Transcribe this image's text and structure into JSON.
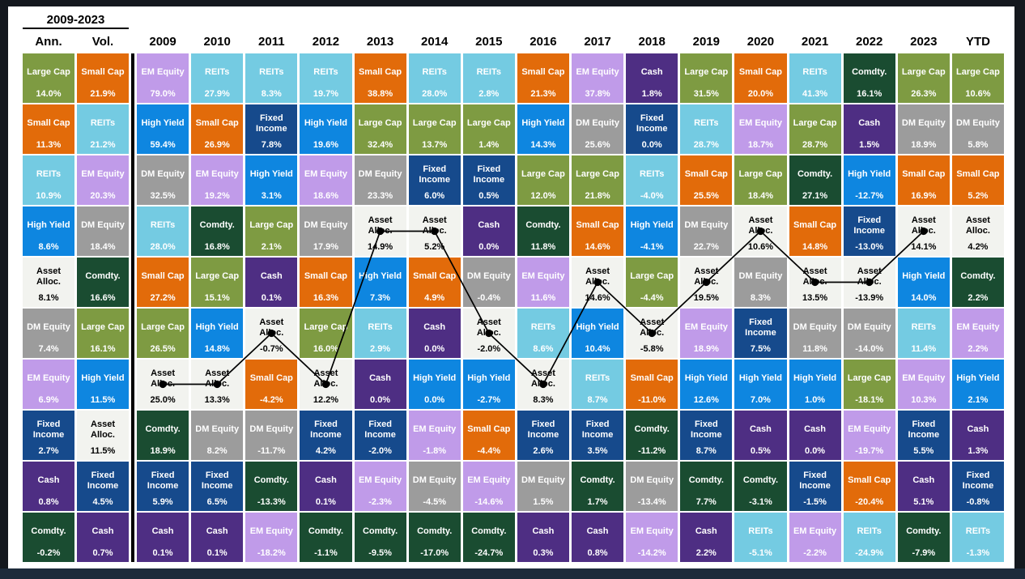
{
  "frame": {
    "background_color": "#14181e",
    "bottom_bar_color": "#1d2b3b",
    "panel_color": "#ffffff"
  },
  "chart_data": {
    "type": "table",
    "title": "2009-2023",
    "description": "Asset class annual returns quilt, ranked best to worst per column, with a black connected line marking the Asset Alloc. portfolio path from 2009 through 2023",
    "legend_position": "none",
    "grid": "quilt",
    "asset_styles": {
      "Large Cap": {
        "bg": "#7E9B42",
        "fg": "#FFFFFF"
      },
      "Small Cap": {
        "bg": "#E26B0A",
        "fg": "#FFFFFF"
      },
      "REITs": {
        "bg": "#74CBE2",
        "fg": "#FFFFFF"
      },
      "High Yield": {
        "bg": "#0E86E0",
        "fg": "#FFFFFF"
      },
      "Asset Alloc.": {
        "bg": "#F2F3EF",
        "fg": "#000000"
      },
      "DM Equity": {
        "bg": "#9C9C9C",
        "fg": "#FFFFFF"
      },
      "EM Equity": {
        "bg": "#C09BE9",
        "fg": "#FFFFFF"
      },
      "Fixed Income": {
        "bg": "#164A8C",
        "fg": "#FFFFFF"
      },
      "Cash": {
        "bg": "#4E2E83",
        "fg": "#FFFFFF"
      },
      "Comdty.": {
        "bg": "#1A4C31",
        "fg": "#FFFFFF"
      }
    },
    "line_overlay": {
      "asset": "Asset Alloc.",
      "from_column": "2009",
      "to_column": "2023",
      "color": "#000000",
      "dot_radius": 4.6,
      "stroke_width": 1.7
    },
    "columns": [
      {
        "label": "Ann.",
        "kind": "summary",
        "cells": [
          {
            "asset": "Large Cap",
            "value": "14.0%"
          },
          {
            "asset": "Small Cap",
            "value": "11.3%"
          },
          {
            "asset": "REITs",
            "value": "10.9%"
          },
          {
            "asset": "High Yield",
            "value": "8.6%"
          },
          {
            "asset": "Asset Alloc.",
            "value": "8.1%"
          },
          {
            "asset": "DM Equity",
            "value": "7.4%"
          },
          {
            "asset": "EM Equity",
            "value": "6.9%"
          },
          {
            "asset": "Fixed Income",
            "value": "2.7%"
          },
          {
            "asset": "Cash",
            "value": "0.8%"
          },
          {
            "asset": "Comdty.",
            "value": "-0.2%"
          }
        ]
      },
      {
        "label": "Vol.",
        "kind": "summary",
        "cells": [
          {
            "asset": "Small Cap",
            "value": "21.9%"
          },
          {
            "asset": "REITs",
            "value": "21.2%"
          },
          {
            "asset": "EM Equity",
            "value": "20.3%"
          },
          {
            "asset": "DM Equity",
            "value": "18.4%"
          },
          {
            "asset": "Comdty.",
            "value": "16.6%"
          },
          {
            "asset": "Large Cap",
            "value": "16.1%"
          },
          {
            "asset": "High Yield",
            "value": "11.5%"
          },
          {
            "asset": "Asset Alloc.",
            "value": "11.5%"
          },
          {
            "asset": "Fixed Income",
            "value": "4.5%"
          },
          {
            "asset": "Cash",
            "value": "0.7%"
          }
        ]
      },
      {
        "label": "2009",
        "kind": "year",
        "cells": [
          {
            "asset": "EM Equity",
            "value": "79.0%"
          },
          {
            "asset": "High Yield",
            "value": "59.4%"
          },
          {
            "asset": "DM Equity",
            "value": "32.5%"
          },
          {
            "asset": "REITs",
            "value": "28.0%"
          },
          {
            "asset": "Small Cap",
            "value": "27.2%"
          },
          {
            "asset": "Large Cap",
            "value": "26.5%"
          },
          {
            "asset": "Asset Alloc.",
            "value": "25.0%"
          },
          {
            "asset": "Comdty.",
            "value": "18.9%"
          },
          {
            "asset": "Fixed Income",
            "value": "5.9%"
          },
          {
            "asset": "Cash",
            "value": "0.1%"
          }
        ]
      },
      {
        "label": "2010",
        "kind": "year",
        "cells": [
          {
            "asset": "REITs",
            "value": "27.9%"
          },
          {
            "asset": "Small Cap",
            "value": "26.9%"
          },
          {
            "asset": "EM Equity",
            "value": "19.2%"
          },
          {
            "asset": "Comdty.",
            "value": "16.8%"
          },
          {
            "asset": "Large Cap",
            "value": "15.1%"
          },
          {
            "asset": "High Yield",
            "value": "14.8%"
          },
          {
            "asset": "Asset Alloc.",
            "value": "13.3%"
          },
          {
            "asset": "DM Equity",
            "value": "8.2%"
          },
          {
            "asset": "Fixed Income",
            "value": "6.5%"
          },
          {
            "asset": "Cash",
            "value": "0.1%"
          }
        ]
      },
      {
        "label": "2011",
        "kind": "year",
        "cells": [
          {
            "asset": "REITs",
            "value": "8.3%"
          },
          {
            "asset": "Fixed Income",
            "value": "7.8%"
          },
          {
            "asset": "High Yield",
            "value": "3.1%"
          },
          {
            "asset": "Large Cap",
            "value": "2.1%"
          },
          {
            "asset": "Cash",
            "value": "0.1%"
          },
          {
            "asset": "Asset Alloc.",
            "value": "-0.7%"
          },
          {
            "asset": "Small Cap",
            "value": "-4.2%"
          },
          {
            "asset": "DM Equity",
            "value": "-11.7%"
          },
          {
            "asset": "Comdty.",
            "value": "-13.3%"
          },
          {
            "asset": "EM Equity",
            "value": "-18.2%"
          }
        ]
      },
      {
        "label": "2012",
        "kind": "year",
        "cells": [
          {
            "asset": "REITs",
            "value": "19.7%"
          },
          {
            "asset": "High Yield",
            "value": "19.6%"
          },
          {
            "asset": "EM Equity",
            "value": "18.6%"
          },
          {
            "asset": "DM Equity",
            "value": "17.9%"
          },
          {
            "asset": "Small Cap",
            "value": "16.3%"
          },
          {
            "asset": "Large Cap",
            "value": "16.0%"
          },
          {
            "asset": "Asset Alloc.",
            "value": "12.2%"
          },
          {
            "asset": "Fixed Income",
            "value": "4.2%"
          },
          {
            "asset": "Cash",
            "value": "0.1%"
          },
          {
            "asset": "Comdty.",
            "value": "-1.1%"
          }
        ]
      },
      {
        "label": "2013",
        "kind": "year",
        "cells": [
          {
            "asset": "Small Cap",
            "value": "38.8%"
          },
          {
            "asset": "Large Cap",
            "value": "32.4%"
          },
          {
            "asset": "DM Equity",
            "value": "23.3%"
          },
          {
            "asset": "Asset Alloc.",
            "value": "14.9%"
          },
          {
            "asset": "High Yield",
            "value": "7.3%"
          },
          {
            "asset": "REITs",
            "value": "2.9%"
          },
          {
            "asset": "Cash",
            "value": "0.0%"
          },
          {
            "asset": "Fixed Income",
            "value": "-2.0%"
          },
          {
            "asset": "EM Equity",
            "value": "-2.3%"
          },
          {
            "asset": "Comdty.",
            "value": "-9.5%"
          }
        ]
      },
      {
        "label": "2014",
        "kind": "year",
        "cells": [
          {
            "asset": "REITs",
            "value": "28.0%"
          },
          {
            "asset": "Large Cap",
            "value": "13.7%"
          },
          {
            "asset": "Fixed Income",
            "value": "6.0%"
          },
          {
            "asset": "Asset Alloc.",
            "value": "5.2%"
          },
          {
            "asset": "Small Cap",
            "value": "4.9%"
          },
          {
            "asset": "Cash",
            "value": "0.0%"
          },
          {
            "asset": "High Yield",
            "value": "0.0%"
          },
          {
            "asset": "EM Equity",
            "value": "-1.8%"
          },
          {
            "asset": "DM Equity",
            "value": "-4.5%"
          },
          {
            "asset": "Comdty.",
            "value": "-17.0%"
          }
        ]
      },
      {
        "label": "2015",
        "kind": "year",
        "cells": [
          {
            "asset": "REITs",
            "value": "2.8%"
          },
          {
            "asset": "Large Cap",
            "value": "1.4%"
          },
          {
            "asset": "Fixed Income",
            "value": "0.5%"
          },
          {
            "asset": "Cash",
            "value": "0.0%"
          },
          {
            "asset": "DM Equity",
            "value": "-0.4%"
          },
          {
            "asset": "Asset Alloc.",
            "value": "-2.0%"
          },
          {
            "asset": "High Yield",
            "value": "-2.7%"
          },
          {
            "asset": "Small Cap",
            "value": "-4.4%"
          },
          {
            "asset": "EM Equity",
            "value": "-14.6%"
          },
          {
            "asset": "Comdty.",
            "value": "-24.7%"
          }
        ]
      },
      {
        "label": "2016",
        "kind": "year",
        "cells": [
          {
            "asset": "Small Cap",
            "value": "21.3%"
          },
          {
            "asset": "High Yield",
            "value": "14.3%"
          },
          {
            "asset": "Large Cap",
            "value": "12.0%"
          },
          {
            "asset": "Comdty.",
            "value": "11.8%"
          },
          {
            "asset": "EM Equity",
            "value": "11.6%"
          },
          {
            "asset": "REITs",
            "value": "8.6%"
          },
          {
            "asset": "Asset Alloc.",
            "value": "8.3%"
          },
          {
            "asset": "Fixed Income",
            "value": "2.6%"
          },
          {
            "asset": "DM Equity",
            "value": "1.5%"
          },
          {
            "asset": "Cash",
            "value": "0.3%"
          }
        ]
      },
      {
        "label": "2017",
        "kind": "year",
        "cells": [
          {
            "asset": "EM Equity",
            "value": "37.8%"
          },
          {
            "asset": "DM Equity",
            "value": "25.6%"
          },
          {
            "asset": "Large Cap",
            "value": "21.8%"
          },
          {
            "asset": "Small Cap",
            "value": "14.6%"
          },
          {
            "asset": "Asset Alloc.",
            "value": "14.6%"
          },
          {
            "asset": "High Yield",
            "value": "10.4%"
          },
          {
            "asset": "REITs",
            "value": "8.7%"
          },
          {
            "asset": "Fixed Income",
            "value": "3.5%"
          },
          {
            "asset": "Comdty.",
            "value": "1.7%"
          },
          {
            "asset": "Cash",
            "value": "0.8%"
          }
        ]
      },
      {
        "label": "2018",
        "kind": "year",
        "cells": [
          {
            "asset": "Cash",
            "value": "1.8%"
          },
          {
            "asset": "Fixed Income",
            "value": "0.0%"
          },
          {
            "asset": "REITs",
            "value": "-4.0%"
          },
          {
            "asset": "High Yield",
            "value": "-4.1%"
          },
          {
            "asset": "Large Cap",
            "value": "-4.4%"
          },
          {
            "asset": "Asset Alloc.",
            "value": "-5.8%"
          },
          {
            "asset": "Small Cap",
            "value": "-11.0%"
          },
          {
            "asset": "Comdty.",
            "value": "-11.2%"
          },
          {
            "asset": "DM Equity",
            "value": "-13.4%"
          },
          {
            "asset": "EM Equity",
            "value": "-14.2%"
          }
        ]
      },
      {
        "label": "2019",
        "kind": "year",
        "cells": [
          {
            "asset": "Large Cap",
            "value": "31.5%"
          },
          {
            "asset": "REITs",
            "value": "28.7%"
          },
          {
            "asset": "Small Cap",
            "value": "25.5%"
          },
          {
            "asset": "DM Equity",
            "value": "22.7%"
          },
          {
            "asset": "Asset Alloc.",
            "value": "19.5%"
          },
          {
            "asset": "EM Equity",
            "value": "18.9%"
          },
          {
            "asset": "High Yield",
            "value": "12.6%"
          },
          {
            "asset": "Fixed Income",
            "value": "8.7%"
          },
          {
            "asset": "Comdty.",
            "value": "7.7%"
          },
          {
            "asset": "Cash",
            "value": "2.2%"
          }
        ]
      },
      {
        "label": "2020",
        "kind": "year",
        "cells": [
          {
            "asset": "Small Cap",
            "value": "20.0%"
          },
          {
            "asset": "EM Equity",
            "value": "18.7%"
          },
          {
            "asset": "Large Cap",
            "value": "18.4%"
          },
          {
            "asset": "Asset Alloc.",
            "value": "10.6%"
          },
          {
            "asset": "DM Equity",
            "value": "8.3%"
          },
          {
            "asset": "Fixed Income",
            "value": "7.5%"
          },
          {
            "asset": "High Yield",
            "value": "7.0%"
          },
          {
            "asset": "Cash",
            "value": "0.5%"
          },
          {
            "asset": "Comdty.",
            "value": "-3.1%"
          },
          {
            "asset": "REITs",
            "value": "-5.1%"
          }
        ]
      },
      {
        "label": "2021",
        "kind": "year",
        "cells": [
          {
            "asset": "REITs",
            "value": "41.3%"
          },
          {
            "asset": "Large Cap",
            "value": "28.7%"
          },
          {
            "asset": "Comdty.",
            "value": "27.1%"
          },
          {
            "asset": "Small Cap",
            "value": "14.8%"
          },
          {
            "asset": "Asset Alloc.",
            "value": "13.5%"
          },
          {
            "asset": "DM Equity",
            "value": "11.8%"
          },
          {
            "asset": "High Yield",
            "value": "1.0%"
          },
          {
            "asset": "Cash",
            "value": "0.0%"
          },
          {
            "asset": "Fixed Income",
            "value": "-1.5%"
          },
          {
            "asset": "EM Equity",
            "value": "-2.2%"
          }
        ]
      },
      {
        "label": "2022",
        "kind": "year",
        "cells": [
          {
            "asset": "Comdty.",
            "value": "16.1%"
          },
          {
            "asset": "Cash",
            "value": "1.5%"
          },
          {
            "asset": "High Yield",
            "value": "-12.7%"
          },
          {
            "asset": "Fixed Income",
            "value": "-13.0%"
          },
          {
            "asset": "Asset Alloc.",
            "value": "-13.9%"
          },
          {
            "asset": "DM Equity",
            "value": "-14.0%"
          },
          {
            "asset": "Large Cap",
            "value": "-18.1%"
          },
          {
            "asset": "EM Equity",
            "value": "-19.7%"
          },
          {
            "asset": "Small Cap",
            "value": "-20.4%"
          },
          {
            "asset": "REITs",
            "value": "-24.9%"
          }
        ]
      },
      {
        "label": "2023",
        "kind": "year",
        "cells": [
          {
            "asset": "Large Cap",
            "value": "26.3%"
          },
          {
            "asset": "DM Equity",
            "value": "18.9%"
          },
          {
            "asset": "Small Cap",
            "value": "16.9%"
          },
          {
            "asset": "Asset Alloc.",
            "value": "14.1%"
          },
          {
            "asset": "High Yield",
            "value": "14.0%"
          },
          {
            "asset": "REITs",
            "value": "11.4%"
          },
          {
            "asset": "EM Equity",
            "value": "10.3%"
          },
          {
            "asset": "Fixed Income",
            "value": "5.5%"
          },
          {
            "asset": "Cash",
            "value": "5.1%"
          },
          {
            "asset": "Comdty.",
            "value": "-7.9%"
          }
        ]
      },
      {
        "label": "YTD",
        "kind": "ytd",
        "cells": [
          {
            "asset": "Large Cap",
            "value": "10.6%"
          },
          {
            "asset": "DM Equity",
            "value": "5.8%"
          },
          {
            "asset": "Small Cap",
            "value": "5.2%"
          },
          {
            "asset": "Asset Alloc.",
            "value": "4.2%"
          },
          {
            "asset": "Comdty.",
            "value": "2.2%"
          },
          {
            "asset": "EM Equity",
            "value": "2.2%"
          },
          {
            "asset": "High Yield",
            "value": "2.1%"
          },
          {
            "asset": "Cash",
            "value": "1.3%"
          },
          {
            "asset": "Fixed Income",
            "value": "-0.8%"
          },
          {
            "asset": "REITs",
            "value": "-1.3%"
          }
        ]
      }
    ]
  }
}
